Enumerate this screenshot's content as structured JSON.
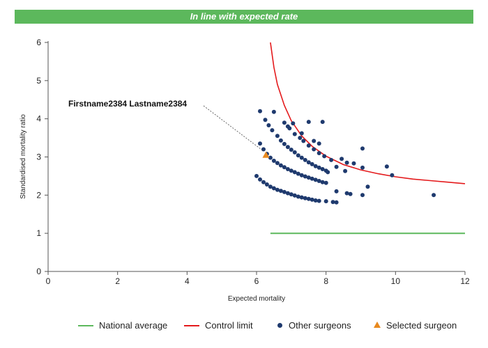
{
  "banner": {
    "text": "In line with expected rate",
    "color": "#5cb85c"
  },
  "colors": {
    "national": "#5cb85c",
    "control": "#e41a1c",
    "others": "#1f3a6e",
    "selected": "#e8891e"
  },
  "chart_data": {
    "type": "scatter",
    "xlabel": "Expected mortality",
    "ylabel": "Standardised mortality ratio",
    "xlim": [
      0,
      12
    ],
    "ylim": [
      0,
      6
    ],
    "xticks": [
      "0",
      "2",
      "4",
      "6",
      "8",
      "10",
      "12"
    ],
    "yticks": [
      "0",
      "1",
      "2",
      "3",
      "4",
      "5",
      "6"
    ],
    "grid": false,
    "legend_position": "bottom",
    "annotation": {
      "text": "Firstname2384 Lastname2384",
      "x": 6.25,
      "y": 3.05
    },
    "series": [
      {
        "name": "National average",
        "kind": "line",
        "points": [
          [
            6.4,
            1.0
          ],
          [
            12.0,
            1.0
          ]
        ]
      },
      {
        "name": "Control limit",
        "kind": "line",
        "points": [
          [
            6.4,
            6.0
          ],
          [
            6.5,
            5.35
          ],
          [
            6.6,
            4.9
          ],
          [
            6.8,
            4.35
          ],
          [
            7.0,
            3.95
          ],
          [
            7.3,
            3.55
          ],
          [
            7.6,
            3.28
          ],
          [
            8.0,
            3.02
          ],
          [
            8.5,
            2.8
          ],
          [
            9.0,
            2.66
          ],
          [
            9.5,
            2.56
          ],
          [
            10.0,
            2.48
          ],
          [
            10.5,
            2.42
          ],
          [
            11.0,
            2.38
          ],
          [
            11.5,
            2.34
          ],
          [
            12.0,
            2.3
          ]
        ]
      },
      {
        "name": "Other surgeons",
        "kind": "scatter",
        "points": [
          [
            6.0,
            2.5
          ],
          [
            6.1,
            2.41
          ],
          [
            6.2,
            2.34
          ],
          [
            6.3,
            2.28
          ],
          [
            6.4,
            2.22
          ],
          [
            6.5,
            2.18
          ],
          [
            6.6,
            2.14
          ],
          [
            6.7,
            2.11
          ],
          [
            6.8,
            2.08
          ],
          [
            6.9,
            2.05
          ],
          [
            7.0,
            2.02
          ],
          [
            7.1,
            1.99
          ],
          [
            7.2,
            1.96
          ],
          [
            7.3,
            1.94
          ],
          [
            7.4,
            1.92
          ],
          [
            7.5,
            1.9
          ],
          [
            7.6,
            1.88
          ],
          [
            7.7,
            1.86
          ],
          [
            7.8,
            1.85
          ],
          [
            8.0,
            1.84
          ],
          [
            8.2,
            1.82
          ],
          [
            8.3,
            1.81
          ],
          [
            6.1,
            3.35
          ],
          [
            6.2,
            3.2
          ],
          [
            6.3,
            3.08
          ],
          [
            6.4,
            2.98
          ],
          [
            6.5,
            2.9
          ],
          [
            6.6,
            2.84
          ],
          [
            6.7,
            2.78
          ],
          [
            6.8,
            2.73
          ],
          [
            6.9,
            2.68
          ],
          [
            7.0,
            2.64
          ],
          [
            7.1,
            2.6
          ],
          [
            7.2,
            2.56
          ],
          [
            7.3,
            2.52
          ],
          [
            7.4,
            2.49
          ],
          [
            7.5,
            2.46
          ],
          [
            7.6,
            2.43
          ],
          [
            7.7,
            2.4
          ],
          [
            7.8,
            2.37
          ],
          [
            7.9,
            2.34
          ],
          [
            8.0,
            2.32
          ],
          [
            8.3,
            2.1
          ],
          [
            8.6,
            2.05
          ],
          [
            8.7,
            2.03
          ],
          [
            9.05,
            2.0
          ],
          [
            9.2,
            2.22
          ],
          [
            6.1,
            4.2
          ],
          [
            6.25,
            3.97
          ],
          [
            6.35,
            3.83
          ],
          [
            6.45,
            3.7
          ],
          [
            6.6,
            3.55
          ],
          [
            6.7,
            3.43
          ],
          [
            6.8,
            3.34
          ],
          [
            6.9,
            3.26
          ],
          [
            7.0,
            3.19
          ],
          [
            7.1,
            3.12
          ],
          [
            7.2,
            3.04
          ],
          [
            7.3,
            2.98
          ],
          [
            7.4,
            2.92
          ],
          [
            7.5,
            2.86
          ],
          [
            7.6,
            2.81
          ],
          [
            7.7,
            2.76
          ],
          [
            7.8,
            2.72
          ],
          [
            7.9,
            2.68
          ],
          [
            8.0,
            2.64
          ],
          [
            8.05,
            2.6
          ],
          [
            6.5,
            4.18
          ],
          [
            6.8,
            3.9
          ],
          [
            6.95,
            3.75
          ],
          [
            7.1,
            3.6
          ],
          [
            7.25,
            3.5
          ],
          [
            7.35,
            3.42
          ],
          [
            7.5,
            3.3
          ],
          [
            7.65,
            3.2
          ],
          [
            7.8,
            3.1
          ],
          [
            7.95,
            3.02
          ],
          [
            8.15,
            2.92
          ],
          [
            8.3,
            2.74
          ],
          [
            8.55,
            2.63
          ],
          [
            6.9,
            3.8
          ],
          [
            7.05,
            3.88
          ],
          [
            7.3,
            3.62
          ],
          [
            7.5,
            3.92
          ],
          [
            7.65,
            3.42
          ],
          [
            7.8,
            3.35
          ],
          [
            7.9,
            3.92
          ],
          [
            8.45,
            2.95
          ],
          [
            8.6,
            2.85
          ],
          [
            8.8,
            2.83
          ],
          [
            9.05,
            2.72
          ],
          [
            9.05,
            3.22
          ],
          [
            9.75,
            2.75
          ],
          [
            9.9,
            2.52
          ],
          [
            11.1,
            2.0
          ]
        ]
      },
      {
        "name": "Selected surgeon",
        "kind": "scatter",
        "points": [
          [
            6.27,
            3.05
          ]
        ]
      }
    ]
  }
}
